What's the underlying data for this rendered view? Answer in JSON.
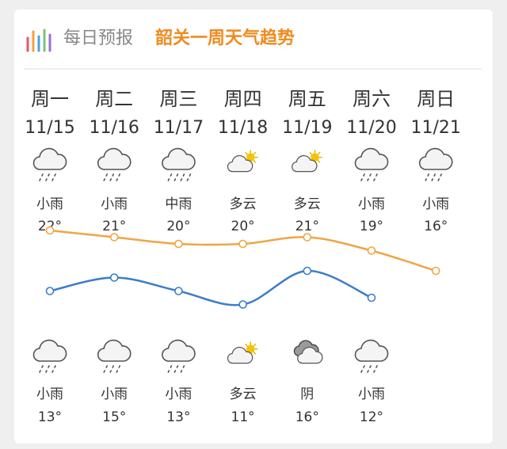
{
  "header": {
    "label": "每日预报",
    "title": "韶关一周天气趋势"
  },
  "days": [
    {
      "weekday": "周一",
      "date": "11/15",
      "day_weather": "小雨",
      "high": 22,
      "high_label": "22°",
      "night_weather": "小雨",
      "low": 13,
      "low_label": "13°"
    },
    {
      "weekday": "周二",
      "date": "11/16",
      "day_weather": "小雨",
      "high": 21,
      "high_label": "21°",
      "night_weather": "小雨",
      "low": 15,
      "low_label": "15°"
    },
    {
      "weekday": "周三",
      "date": "11/17",
      "day_weather": "中雨",
      "high": 20,
      "high_label": "20°",
      "night_weather": "小雨",
      "low": 13,
      "low_label": "13°"
    },
    {
      "weekday": "周四",
      "date": "11/18",
      "day_weather": "多云",
      "high": 20,
      "high_label": "20°",
      "night_weather": "多云",
      "low": 11,
      "low_label": "11°"
    },
    {
      "weekday": "周五",
      "date": "11/19",
      "day_weather": "多云",
      "high": 21,
      "high_label": "21°",
      "night_weather": "阴",
      "low": 16,
      "low_label": "16°"
    },
    {
      "weekday": "周六",
      "date": "11/20",
      "day_weather": "小雨",
      "high": 19,
      "high_label": "19°",
      "night_weather": "小雨",
      "low": 12,
      "low_label": "12°"
    },
    {
      "weekday": "周日",
      "date": "11/21",
      "day_weather": "小雨",
      "high": 16,
      "high_label": "16°"
    }
  ]
}
